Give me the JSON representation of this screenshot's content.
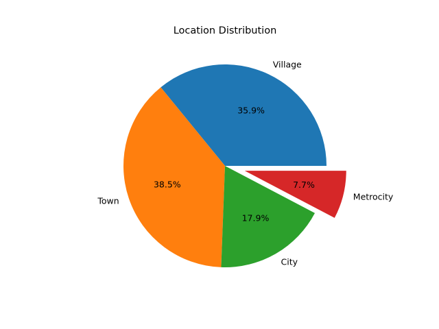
{
  "chart_data": {
    "type": "pie",
    "title": "Location Distribution",
    "labels": [
      "Village",
      "Town",
      "City",
      "Metrocity"
    ],
    "values": [
      35.9,
      38.5,
      17.9,
      7.7
    ],
    "percent_labels": [
      "35.9%",
      "38.5%",
      "17.9%",
      "7.7%"
    ],
    "colors": [
      "#1f77b4",
      "#ff7f0e",
      "#2ca02c",
      "#d62728"
    ],
    "explode": [
      0,
      0,
      0,
      0.2
    ],
    "start_angle_deg": 0,
    "direction": "counterclockwise",
    "legend": "none"
  }
}
